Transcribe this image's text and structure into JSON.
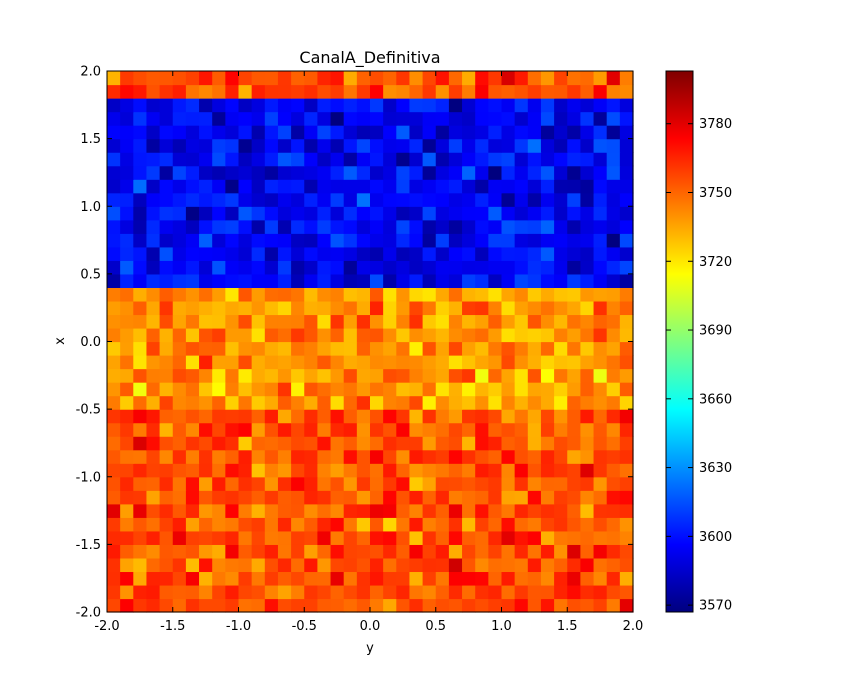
{
  "chart_data": {
    "type": "heatmap",
    "title": "CanalA_Definitiva",
    "xlabel": "y",
    "ylabel": "x",
    "xlim": [
      -2.0,
      2.0
    ],
    "ylim": [
      -2.0,
      2.0
    ],
    "x_ticks": [
      "-2.0",
      "-1.5",
      "-1.0",
      "-0.5",
      "0.0",
      "0.5",
      "1.0",
      "1.5",
      "2.0"
    ],
    "y_ticks": [
      "-2.0",
      "-1.5",
      "-1.0",
      "-0.5",
      "0.0",
      "0.5",
      "1.0",
      "1.5",
      "2.0"
    ],
    "colormap": "jet",
    "grid": false,
    "colorbar": {
      "vmin": 3567,
      "vmax": 3803,
      "ticks": [
        "3570",
        "3600",
        "3630",
        "3660",
        "3690",
        "3720",
        "3750",
        "3780"
      ]
    },
    "grid_shape": {
      "rows": 40,
      "cols": 40
    },
    "regions": [
      {
        "name": "top strip",
        "y_range": [
          1.85,
          2.0
        ],
        "approx_value": 3755
      },
      {
        "name": "upper band",
        "y_range": [
          0.45,
          1.85
        ],
        "approx_value": 3595
      },
      {
        "name": "middle band",
        "y_range": [
          -0.5,
          0.45
        ],
        "approx_value": 3738
      },
      {
        "name": "lower band",
        "y_range": [
          -2.0,
          -0.5
        ],
        "approx_value": 3755
      }
    ]
  },
  "colors": {
    "jet_stops": [
      "#00007f",
      "#0000ff",
      "#007fff",
      "#00ffff",
      "#7fff7f",
      "#ffff00",
      "#ff7f00",
      "#ff0000",
      "#7f0000"
    ]
  }
}
